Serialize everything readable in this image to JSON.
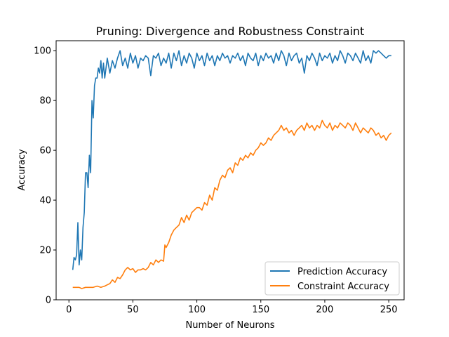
{
  "chart_data": {
    "type": "line",
    "title": "Pruning: Divergence and Robustness Constraint",
    "xlabel": "Number of Neurons",
    "ylabel": "Accuracy",
    "xlim": [
      -10,
      262
    ],
    "ylim": [
      0,
      104
    ],
    "xticks": [
      0,
      50,
      100,
      150,
      200,
      250
    ],
    "yticks": [
      0,
      20,
      40,
      60,
      80,
      100
    ],
    "grid": false,
    "legend_position": "bottom-right",
    "colors": {
      "prediction": "#1f77b4",
      "constraint": "#ff7f0e"
    },
    "series": [
      {
        "name": "Prediction Accuracy",
        "color": "#1f77b4",
        "points": [
          [
            3,
            12
          ],
          [
            4,
            17
          ],
          [
            5,
            16
          ],
          [
            6,
            18
          ],
          [
            7,
            31
          ],
          [
            8,
            14
          ],
          [
            9,
            20
          ],
          [
            10,
            16
          ],
          [
            11,
            29
          ],
          [
            12,
            35
          ],
          [
            13,
            51
          ],
          [
            14,
            51
          ],
          [
            15,
            45
          ],
          [
            16,
            58
          ],
          [
            17,
            51
          ],
          [
            18,
            80
          ],
          [
            19,
            73
          ],
          [
            20,
            86
          ],
          [
            21,
            89
          ],
          [
            22,
            89
          ],
          [
            23,
            93
          ],
          [
            24,
            91
          ],
          [
            25,
            96
          ],
          [
            26,
            89
          ],
          [
            27,
            95
          ],
          [
            28,
            89
          ],
          [
            30,
            97
          ],
          [
            32,
            91
          ],
          [
            34,
            96
          ],
          [
            36,
            93
          ],
          [
            38,
            97
          ],
          [
            40,
            100
          ],
          [
            42,
            94
          ],
          [
            44,
            97
          ],
          [
            46,
            93
          ],
          [
            48,
            99
          ],
          [
            50,
            95
          ],
          [
            52,
            98
          ],
          [
            54,
            93
          ],
          [
            56,
            97
          ],
          [
            58,
            96
          ],
          [
            60,
            98
          ],
          [
            62,
            97
          ],
          [
            64,
            90
          ],
          [
            66,
            98
          ],
          [
            68,
            97
          ],
          [
            70,
            99
          ],
          [
            72,
            94
          ],
          [
            74,
            97
          ],
          [
            76,
            95
          ],
          [
            78,
            99
          ],
          [
            80,
            93
          ],
          [
            82,
            99
          ],
          [
            84,
            96
          ],
          [
            86,
            100
          ],
          [
            88,
            94
          ],
          [
            90,
            98
          ],
          [
            92,
            95
          ],
          [
            94,
            99
          ],
          [
            96,
            97
          ],
          [
            98,
            93
          ],
          [
            100,
            99
          ],
          [
            102,
            96
          ],
          [
            104,
            98
          ],
          [
            106,
            94
          ],
          [
            108,
            99
          ],
          [
            110,
            96
          ],
          [
            112,
            98
          ],
          [
            114,
            94
          ],
          [
            116,
            98
          ],
          [
            118,
            96
          ],
          [
            120,
            99
          ],
          [
            122,
            97
          ],
          [
            124,
            98
          ],
          [
            126,
            95
          ],
          [
            128,
            98
          ],
          [
            130,
            97
          ],
          [
            132,
            99
          ],
          [
            134,
            96
          ],
          [
            136,
            98
          ],
          [
            138,
            94
          ],
          [
            140,
            99
          ],
          [
            142,
            97
          ],
          [
            144,
            96
          ],
          [
            146,
            99
          ],
          [
            148,
            94
          ],
          [
            150,
            98
          ],
          [
            152,
            96
          ],
          [
            154,
            99
          ],
          [
            156,
            97
          ],
          [
            158,
            98
          ],
          [
            160,
            95
          ],
          [
            162,
            99
          ],
          [
            164,
            96
          ],
          [
            166,
            100
          ],
          [
            168,
            98
          ],
          [
            170,
            94
          ],
          [
            172,
            99
          ],
          [
            174,
            96
          ],
          [
            176,
            98
          ],
          [
            178,
            99
          ],
          [
            180,
            95
          ],
          [
            182,
            97
          ],
          [
            184,
            91
          ],
          [
            186,
            98
          ],
          [
            188,
            96
          ],
          [
            190,
            99
          ],
          [
            192,
            97
          ],
          [
            194,
            94
          ],
          [
            196,
            99
          ],
          [
            198,
            96
          ],
          [
            200,
            98
          ],
          [
            202,
            97
          ],
          [
            204,
            99
          ],
          [
            206,
            95
          ],
          [
            208,
            98
          ],
          [
            210,
            96
          ],
          [
            212,
            100
          ],
          [
            214,
            98
          ],
          [
            216,
            95
          ],
          [
            218,
            99
          ],
          [
            220,
            98
          ],
          [
            222,
            96
          ],
          [
            224,
            99
          ],
          [
            226,
            97
          ],
          [
            228,
            95
          ],
          [
            230,
            100
          ],
          [
            232,
            96
          ],
          [
            234,
            98
          ],
          [
            236,
            95
          ],
          [
            238,
            100
          ],
          [
            240,
            99
          ],
          [
            242,
            100
          ],
          [
            244,
            99
          ],
          [
            246,
            98
          ],
          [
            248,
            97
          ],
          [
            250,
            98
          ],
          [
            252,
            98
          ]
        ]
      },
      {
        "name": "Constraint Accuracy",
        "color": "#ff7f0e",
        "points": [
          [
            3,
            5
          ],
          [
            5,
            5
          ],
          [
            8,
            5
          ],
          [
            10,
            4.5
          ],
          [
            13,
            5
          ],
          [
            16,
            5
          ],
          [
            19,
            5
          ],
          [
            22,
            5.5
          ],
          [
            25,
            5
          ],
          [
            28,
            5.5
          ],
          [
            30,
            6
          ],
          [
            32,
            6.5
          ],
          [
            34,
            8
          ],
          [
            36,
            7
          ],
          [
            38,
            9
          ],
          [
            40,
            8.5
          ],
          [
            42,
            10
          ],
          [
            44,
            12
          ],
          [
            46,
            13
          ],
          [
            48,
            12
          ],
          [
            50,
            12.5
          ],
          [
            52,
            11
          ],
          [
            54,
            12
          ],
          [
            56,
            12
          ],
          [
            58,
            12.5
          ],
          [
            60,
            12
          ],
          [
            62,
            13
          ],
          [
            64,
            15
          ],
          [
            66,
            14
          ],
          [
            68,
            16
          ],
          [
            70,
            15
          ],
          [
            72,
            16
          ],
          [
            74,
            15.5
          ],
          [
            75,
            22
          ],
          [
            76,
            21
          ],
          [
            78,
            23
          ],
          [
            80,
            26
          ],
          [
            82,
            28
          ],
          [
            84,
            29
          ],
          [
            86,
            30
          ],
          [
            88,
            33
          ],
          [
            90,
            31
          ],
          [
            92,
            34
          ],
          [
            94,
            32
          ],
          [
            96,
            35
          ],
          [
            98,
            36
          ],
          [
            100,
            37
          ],
          [
            102,
            37
          ],
          [
            104,
            36
          ],
          [
            106,
            39
          ],
          [
            108,
            38
          ],
          [
            110,
            42
          ],
          [
            112,
            40
          ],
          [
            114,
            45
          ],
          [
            116,
            44
          ],
          [
            118,
            48
          ],
          [
            120,
            50
          ],
          [
            122,
            49
          ],
          [
            124,
            52
          ],
          [
            126,
            53
          ],
          [
            128,
            51
          ],
          [
            130,
            55
          ],
          [
            132,
            54
          ],
          [
            134,
            57
          ],
          [
            136,
            56
          ],
          [
            138,
            58
          ],
          [
            140,
            57
          ],
          [
            142,
            59
          ],
          [
            144,
            58
          ],
          [
            146,
            60
          ],
          [
            148,
            61
          ],
          [
            150,
            63
          ],
          [
            152,
            62
          ],
          [
            154,
            63
          ],
          [
            156,
            65
          ],
          [
            158,
            64
          ],
          [
            160,
            66
          ],
          [
            162,
            67
          ],
          [
            164,
            68
          ],
          [
            166,
            70
          ],
          [
            168,
            68
          ],
          [
            170,
            69
          ],
          [
            172,
            67
          ],
          [
            174,
            68
          ],
          [
            176,
            66
          ],
          [
            178,
            68
          ],
          [
            180,
            69
          ],
          [
            182,
            70
          ],
          [
            184,
            68
          ],
          [
            186,
            71
          ],
          [
            188,
            69
          ],
          [
            190,
            70
          ],
          [
            192,
            68
          ],
          [
            194,
            70
          ],
          [
            196,
            69
          ],
          [
            198,
            72
          ],
          [
            200,
            70
          ],
          [
            202,
            69
          ],
          [
            204,
            71
          ],
          [
            206,
            68
          ],
          [
            208,
            70
          ],
          [
            210,
            69
          ],
          [
            212,
            71
          ],
          [
            214,
            70
          ],
          [
            216,
            69
          ],
          [
            218,
            71
          ],
          [
            220,
            70
          ],
          [
            222,
            68
          ],
          [
            224,
            71
          ],
          [
            226,
            69
          ],
          [
            228,
            67
          ],
          [
            230,
            69
          ],
          [
            232,
            68
          ],
          [
            234,
            67
          ],
          [
            236,
            69
          ],
          [
            238,
            68
          ],
          [
            240,
            66
          ],
          [
            242,
            67
          ],
          [
            244,
            65
          ],
          [
            246,
            66
          ],
          [
            248,
            64
          ],
          [
            250,
            66
          ],
          [
            252,
            67
          ]
        ]
      }
    ]
  }
}
